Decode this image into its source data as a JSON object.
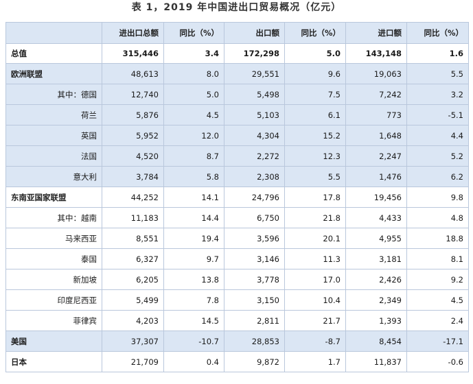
{
  "title": "表 1，2019 年中国进出口贸易概况（亿元）",
  "headers": [
    "",
    "进出口总额",
    "同比（%）",
    "出口额",
    "同比（%）",
    "进口额",
    "同比（%）"
  ],
  "rows": [
    {
      "name": "总值",
      "type": "total",
      "shade": false,
      "values": [
        "315,446",
        "3.4",
        "172,298",
        "5.0",
        "143,148",
        "1.6"
      ]
    },
    {
      "name": "欧洲联盟",
      "type": "region",
      "shade": true,
      "values": [
        "48,613",
        "8.0",
        "29,551",
        "9.6",
        "19,063",
        "5.5"
      ]
    },
    {
      "name": "其中：德国",
      "type": "sub",
      "shade": true,
      "values": [
        "12,740",
        "5.0",
        "5,498",
        "7.5",
        "7,242",
        "3.2"
      ]
    },
    {
      "name": "荷兰",
      "type": "sub",
      "shade": true,
      "values": [
        "5,876",
        "4.5",
        "5,103",
        "6.1",
        "773",
        "-5.1"
      ]
    },
    {
      "name": "英国",
      "type": "sub",
      "shade": true,
      "values": [
        "5,952",
        "12.0",
        "4,304",
        "15.2",
        "1,648",
        "4.4"
      ]
    },
    {
      "name": "法国",
      "type": "sub",
      "shade": true,
      "values": [
        "4,520",
        "8.7",
        "2,272",
        "12.3",
        "2,247",
        "5.2"
      ]
    },
    {
      "name": "意大利",
      "type": "sub",
      "shade": true,
      "values": [
        "3,784",
        "5.8",
        "2,308",
        "5.5",
        "1,476",
        "6.2"
      ]
    },
    {
      "name": "东南亚国家联盟",
      "type": "region",
      "shade": false,
      "values": [
        "44,252",
        "14.1",
        "24,796",
        "17.8",
        "19,456",
        "9.8"
      ]
    },
    {
      "name": "其中：越南",
      "type": "sub",
      "shade": false,
      "values": [
        "11,183",
        "14.4",
        "6,750",
        "21.8",
        "4,433",
        "4.8"
      ]
    },
    {
      "name": "马来西亚",
      "type": "sub",
      "shade": false,
      "values": [
        "8,551",
        "19.4",
        "3,596",
        "20.1",
        "4,955",
        "18.8"
      ]
    },
    {
      "name": "泰国",
      "type": "sub",
      "shade": false,
      "values": [
        "6,327",
        "9.7",
        "3,146",
        "11.3",
        "3,181",
        "8.1"
      ]
    },
    {
      "name": "新加坡",
      "type": "sub",
      "shade": false,
      "values": [
        "6,205",
        "13.8",
        "3,778",
        "17.0",
        "2,426",
        "9.2"
      ]
    },
    {
      "name": "印度尼西亚",
      "type": "sub",
      "shade": false,
      "values": [
        "5,499",
        "7.8",
        "3,150",
        "10.4",
        "2,349",
        "4.5"
      ]
    },
    {
      "name": "菲律宾",
      "type": "sub",
      "shade": false,
      "values": [
        "4,203",
        "14.5",
        "2,811",
        "21.7",
        "1,393",
        "2.4"
      ]
    },
    {
      "name": "美国",
      "type": "region",
      "shade": true,
      "values": [
        "37,307",
        "-10.7",
        "28,853",
        "-8.7",
        "8,454",
        "-17.1"
      ]
    },
    {
      "name": "日本",
      "type": "region",
      "shade": false,
      "values": [
        "21,709",
        "0.4",
        "9,872",
        "1.7",
        "11,837",
        "-0.6"
      ]
    }
  ]
}
